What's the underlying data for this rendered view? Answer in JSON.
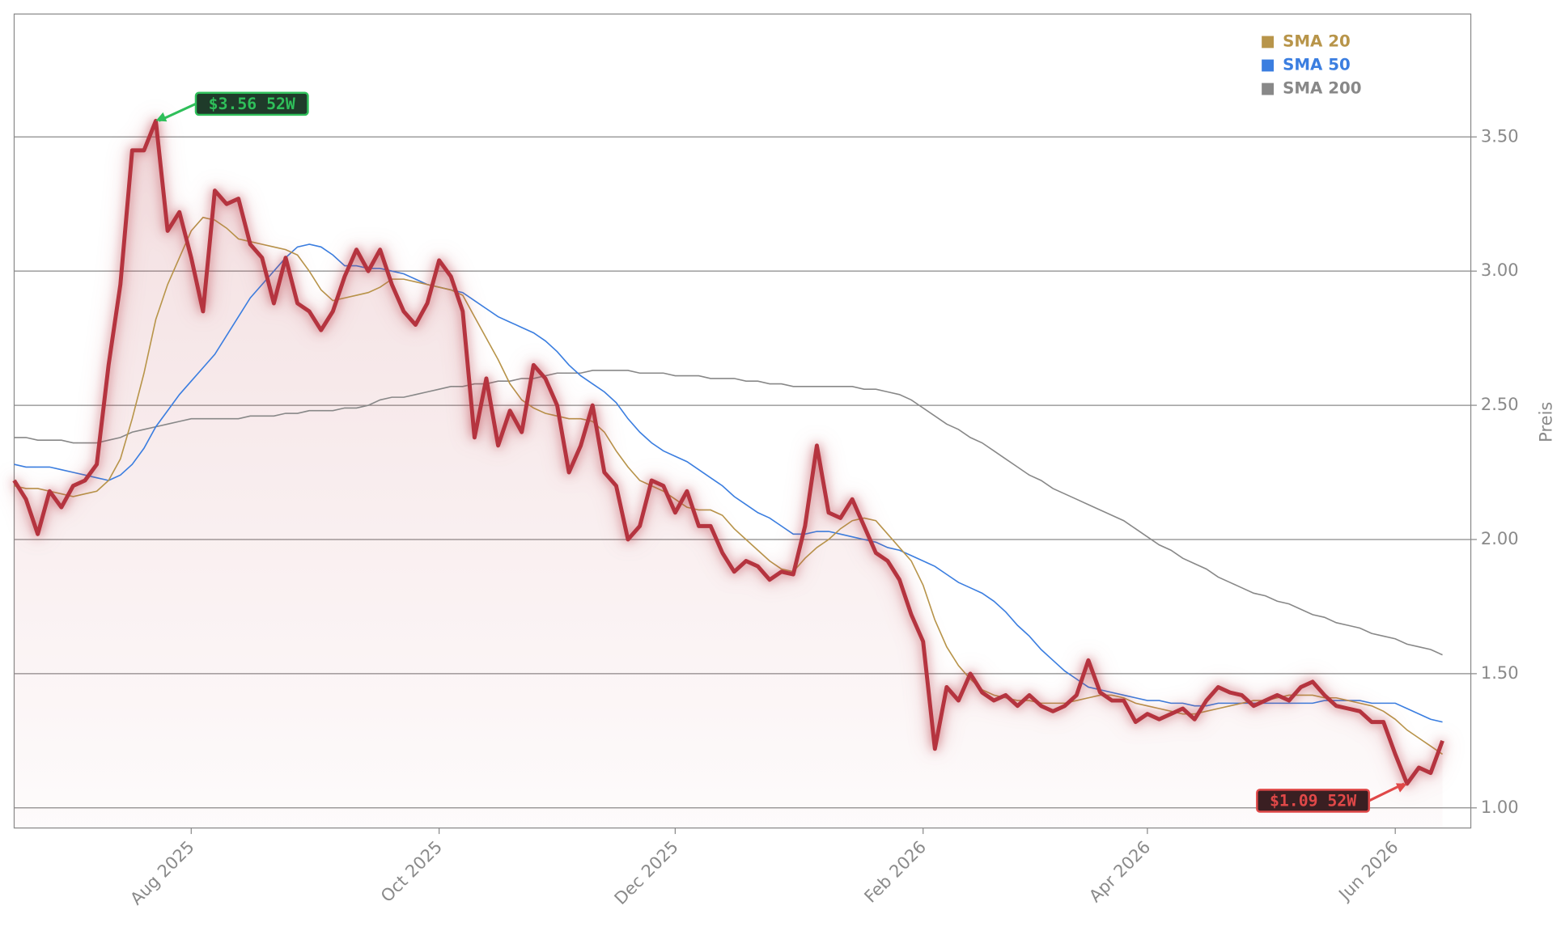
{
  "chart_data": {
    "type": "line",
    "y_label": "Preis",
    "ylim": [
      0.925,
      3.958
    ],
    "yticks": [
      {
        "value": 1.0,
        "label": "1.00"
      },
      {
        "value": 1.5,
        "label": "1.50"
      },
      {
        "value": 2.0,
        "label": "2.00"
      },
      {
        "value": 2.5,
        "label": "2.50"
      },
      {
        "value": 3.0,
        "label": "3.00"
      },
      {
        "value": 3.5,
        "label": "3.50"
      }
    ],
    "grid": true,
    "legend": "upper right",
    "categories": [
      null,
      null,
      null,
      null,
      null,
      null,
      null,
      null,
      null,
      null,
      null,
      null,
      null,
      null,
      null,
      "Aug 2025",
      null,
      null,
      null,
      null,
      null,
      null,
      null,
      null,
      null,
      null,
      null,
      null,
      null,
      null,
      null,
      null,
      null,
      null,
      null,
      null,
      "Oct 2025",
      null,
      null,
      null,
      null,
      null,
      null,
      null,
      null,
      null,
      null,
      null,
      null,
      null,
      null,
      null,
      null,
      null,
      null,
      null,
      "Dec 2025",
      null,
      null,
      null,
      null,
      null,
      null,
      null,
      null,
      null,
      null,
      null,
      null,
      null,
      null,
      null,
      null,
      null,
      null,
      null,
      null,
      "Feb 2026",
      null,
      null,
      null,
      null,
      null,
      null,
      null,
      null,
      null,
      null,
      null,
      null,
      null,
      null,
      null,
      null,
      null,
      null,
      "Apr 2026",
      null,
      null,
      null,
      null,
      null,
      null,
      null,
      null,
      null,
      null,
      null,
      null,
      null,
      null,
      null,
      null,
      null,
      null,
      null,
      null,
      "Jun 2026",
      null,
      null,
      null,
      null
    ],
    "series": [
      {
        "color": "#b5343f",
        "values": [
          2.22,
          2.15,
          2.02,
          2.18,
          2.12,
          2.2,
          2.22,
          2.28,
          2.65,
          2.95,
          3.45,
          3.45,
          3.56,
          3.15,
          3.22,
          3.05,
          2.85,
          3.3,
          3.25,
          3.27,
          3.1,
          3.05,
          2.88,
          3.05,
          2.88,
          2.85,
          2.78,
          2.85,
          2.98,
          3.08,
          3.0,
          3.08,
          2.95,
          2.85,
          2.8,
          2.88,
          3.04,
          2.98,
          2.85,
          2.38,
          2.6,
          2.35,
          2.48,
          2.4,
          2.65,
          2.6,
          2.5,
          2.25,
          2.35,
          2.5,
          2.25,
          2.2,
          2.0,
          2.05,
          2.22,
          2.2,
          2.1,
          2.18,
          2.05,
          2.05,
          1.95,
          1.88,
          1.92,
          1.9,
          1.85,
          1.88,
          1.87,
          2.05,
          2.35,
          2.1,
          2.08,
          2.15,
          2.05,
          1.95,
          1.92,
          1.85,
          1.72,
          1.62,
          1.22,
          1.45,
          1.4,
          1.5,
          1.43,
          1.4,
          1.42,
          1.38,
          1.42,
          1.38,
          1.36,
          1.38,
          1.42,
          1.55,
          1.43,
          1.4,
          1.4,
          1.32,
          1.35,
          1.33,
          1.35,
          1.37,
          1.33,
          1.4,
          1.45,
          1.43,
          1.42,
          1.38,
          1.4,
          1.42,
          1.4,
          1.45,
          1.47,
          1.42,
          1.38,
          1.37,
          1.36,
          1.32,
          1.32,
          1.2,
          1.09,
          1.15,
          1.13,
          1.25
        ]
      },
      {
        "name": "SMA 20",
        "color": "#b8954a",
        "values": [
          2.2,
          2.19,
          2.19,
          2.18,
          2.17,
          2.16,
          2.17,
          2.18,
          2.22,
          2.3,
          2.45,
          2.62,
          2.82,
          2.95,
          3.05,
          3.15,
          3.2,
          3.19,
          3.16,
          3.12,
          3.11,
          3.1,
          3.09,
          3.08,
          3.06,
          3.0,
          2.93,
          2.89,
          2.9,
          2.91,
          2.92,
          2.94,
          2.97,
          2.97,
          2.96,
          2.95,
          2.94,
          2.93,
          2.91,
          2.83,
          2.75,
          2.67,
          2.58,
          2.52,
          2.49,
          2.47,
          2.46,
          2.45,
          2.45,
          2.44,
          2.4,
          2.33,
          2.27,
          2.22,
          2.2,
          2.18,
          2.15,
          2.12,
          2.11,
          2.11,
          2.09,
          2.04,
          2.0,
          1.96,
          1.92,
          1.89,
          1.88,
          1.93,
          1.97,
          2.0,
          2.04,
          2.07,
          2.08,
          2.07,
          2.02,
          1.97,
          1.92,
          1.83,
          1.7,
          1.6,
          1.53,
          1.48,
          1.44,
          1.42,
          1.41,
          1.4,
          1.4,
          1.39,
          1.39,
          1.39,
          1.4,
          1.41,
          1.42,
          1.42,
          1.41,
          1.39,
          1.38,
          1.37,
          1.36,
          1.35,
          1.35,
          1.36,
          1.37,
          1.38,
          1.39,
          1.4,
          1.4,
          1.41,
          1.42,
          1.42,
          1.42,
          1.41,
          1.41,
          1.4,
          1.39,
          1.38,
          1.36,
          1.33,
          1.29,
          1.26,
          1.23,
          1.2
        ]
      },
      {
        "name": "SMA 50",
        "color": "#3b7ee0",
        "values": [
          2.28,
          2.27,
          2.27,
          2.27,
          2.26,
          2.25,
          2.24,
          2.23,
          2.22,
          2.24,
          2.28,
          2.34,
          2.42,
          2.48,
          2.54,
          2.59,
          2.64,
          2.69,
          2.76,
          2.83,
          2.9,
          2.95,
          3.0,
          3.05,
          3.09,
          3.1,
          3.09,
          3.06,
          3.02,
          3.02,
          3.01,
          3.01,
          3.0,
          2.99,
          2.97,
          2.95,
          2.94,
          2.93,
          2.92,
          2.89,
          2.86,
          2.83,
          2.81,
          2.79,
          2.77,
          2.74,
          2.7,
          2.65,
          2.61,
          2.58,
          2.55,
          2.51,
          2.45,
          2.4,
          2.36,
          2.33,
          2.31,
          2.29,
          2.26,
          2.23,
          2.2,
          2.16,
          2.13,
          2.1,
          2.08,
          2.05,
          2.02,
          2.02,
          2.03,
          2.03,
          2.02,
          2.01,
          2.0,
          1.99,
          1.97,
          1.96,
          1.94,
          1.92,
          1.9,
          1.87,
          1.84,
          1.82,
          1.8,
          1.77,
          1.73,
          1.68,
          1.64,
          1.59,
          1.55,
          1.51,
          1.48,
          1.45,
          1.44,
          1.43,
          1.42,
          1.41,
          1.4,
          1.4,
          1.39,
          1.39,
          1.38,
          1.38,
          1.39,
          1.39,
          1.39,
          1.39,
          1.39,
          1.39,
          1.39,
          1.39,
          1.39,
          1.4,
          1.4,
          1.4,
          1.4,
          1.39,
          1.39,
          1.39,
          1.37,
          1.35,
          1.33,
          1.32
        ]
      },
      {
        "name": "SMA 200",
        "color": "#888888",
        "values": [
          2.38,
          2.38,
          2.37,
          2.37,
          2.37,
          2.36,
          2.36,
          2.36,
          2.37,
          2.38,
          2.4,
          2.41,
          2.42,
          2.43,
          2.44,
          2.45,
          2.45,
          2.45,
          2.45,
          2.45,
          2.46,
          2.46,
          2.46,
          2.47,
          2.47,
          2.48,
          2.48,
          2.48,
          2.49,
          2.49,
          2.5,
          2.52,
          2.53,
          2.53,
          2.54,
          2.55,
          2.56,
          2.57,
          2.57,
          2.58,
          2.58,
          2.59,
          2.59,
          2.6,
          2.6,
          2.61,
          2.62,
          2.62,
          2.62,
          2.63,
          2.63,
          2.63,
          2.63,
          2.62,
          2.62,
          2.62,
          2.61,
          2.61,
          2.61,
          2.6,
          2.6,
          2.6,
          2.59,
          2.59,
          2.58,
          2.58,
          2.57,
          2.57,
          2.57,
          2.57,
          2.57,
          2.57,
          2.56,
          2.56,
          2.55,
          2.54,
          2.52,
          2.49,
          2.46,
          2.43,
          2.41,
          2.38,
          2.36,
          2.33,
          2.3,
          2.27,
          2.24,
          2.22,
          2.19,
          2.17,
          2.15,
          2.13,
          2.11,
          2.09,
          2.07,
          2.04,
          2.01,
          1.98,
          1.96,
          1.93,
          1.91,
          1.89,
          1.86,
          1.84,
          1.82,
          1.8,
          1.79,
          1.77,
          1.76,
          1.74,
          1.72,
          1.71,
          1.69,
          1.68,
          1.67,
          1.65,
          1.64,
          1.63,
          1.61,
          1.6,
          1.59,
          1.57
        ]
      }
    ],
    "annotations": [
      {
        "text": "$3.56 52W",
        "value": 3.56,
        "color": "#2fbf5a"
      },
      {
        "text": "$1.09 52W",
        "value": 1.09,
        "color": "#e04848"
      }
    ]
  }
}
